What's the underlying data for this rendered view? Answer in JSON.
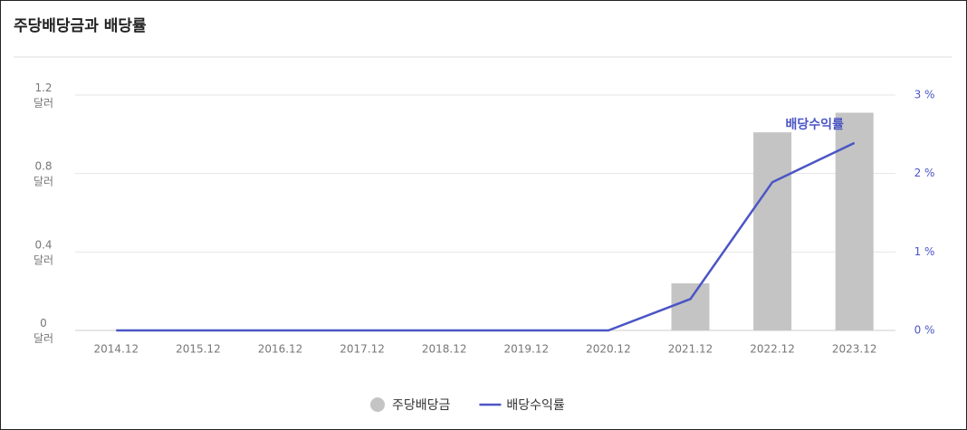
{
  "chart_data": {
    "type": "bar",
    "title": "주당배당금과 배당률",
    "categories": [
      "2014.12",
      "2015.12",
      "2016.12",
      "2017.12",
      "2018.12",
      "2019.12",
      "2020.12",
      "2021.12",
      "2022.12",
      "2023.12"
    ],
    "series": [
      {
        "name": "주당배당금",
        "type": "bar",
        "color": "#c4c4c4",
        "values": [
          0,
          0,
          0,
          0,
          0,
          0,
          0,
          0.24,
          1.01,
          1.11
        ]
      },
      {
        "name": "배당수익률",
        "type": "line",
        "axis": "y2",
        "color": "#4b55c5",
        "values": [
          0,
          0,
          0,
          0,
          0,
          0,
          0,
          0.4,
          1.89,
          2.39
        ]
      }
    ],
    "ylim": [
      0,
      1.2
    ],
    "yticks": [
      {
        "value": 0,
        "label": "0\n달러"
      },
      {
        "value": 0.4,
        "label": "0.4\n달러"
      },
      {
        "value": 0.8,
        "label": "0.8\n달러"
      },
      {
        "value": 1.2,
        "label": "1.2\n달러"
      }
    ],
    "y2lim": [
      0,
      3
    ],
    "y2ticks": [
      {
        "value": 0,
        "label": "0 %"
      },
      {
        "value": 1,
        "label": "1 %"
      },
      {
        "value": 2,
        "label": "2 %"
      },
      {
        "value": 3,
        "label": "3 %"
      }
    ],
    "annotation": "배당수익률",
    "grid": true,
    "legend": "bottom"
  }
}
